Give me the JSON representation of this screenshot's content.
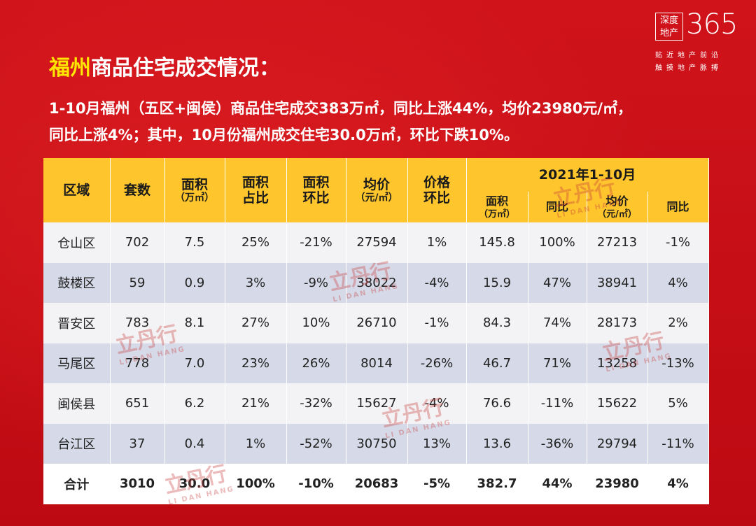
{
  "logo": {
    "box_text": "深度地产",
    "number": "365",
    "line1": "贴近地产前沿",
    "line2": "触摸地产脉搏"
  },
  "title": {
    "highlight": "福州",
    "rest": "商品住宅成交情况："
  },
  "summary": {
    "line1": "1-10月福州（五区+闽侯）商品住宅成交383万㎡，同比上涨44%，均价23980元/㎡，",
    "line2": "同比上涨4%；其中，10月份福州成交住宅30.0万㎡，环比下跌10%。"
  },
  "table": {
    "headers": {
      "region": "区域",
      "units": "套数",
      "area": "面积",
      "area_unit": "（万㎡）",
      "area_share_1": "面积",
      "area_share_2": "占比",
      "area_mom_1": "面积",
      "area_mom_2": "环比",
      "avg_price": "均价",
      "avg_price_unit": "（元/㎡）",
      "price_mom_1": "价格",
      "price_mom_2": "环比",
      "group": "2021年1-10月",
      "ytd_area": "面积",
      "ytd_area_unit": "（万㎡）",
      "ytd_area_yoy": "同比",
      "ytd_price": "均价",
      "ytd_price_unit": "（元/㎡）",
      "ytd_price_yoy": "同比"
    },
    "rows": [
      [
        "仓山区",
        "702",
        "7.5",
        "25%",
        "-21%",
        "27594",
        "1%",
        "145.8",
        "100%",
        "27213",
        "-1%"
      ],
      [
        "鼓楼区",
        "59",
        "0.9",
        "3%",
        "-9%",
        "38022",
        "-4%",
        "15.9",
        "47%",
        "38941",
        "4%"
      ],
      [
        "晋安区",
        "783",
        "8.1",
        "27%",
        "10%",
        "26710",
        "-1%",
        "84.3",
        "74%",
        "28173",
        "2%"
      ],
      [
        "马尾区",
        "778",
        "7.0",
        "23%",
        "26%",
        "8014",
        "-26%",
        "46.7",
        "71%",
        "13258",
        "-13%"
      ],
      [
        "闽侯县",
        "651",
        "6.2",
        "21%",
        "-32%",
        "15627",
        "-4%",
        "76.6",
        "-11%",
        "15622",
        "5%"
      ],
      [
        "台江区",
        "37",
        "0.4",
        "1%",
        "-52%",
        "30750",
        "13%",
        "13.6",
        "-36%",
        "29794",
        "-11%"
      ],
      [
        "合计",
        "3010",
        "30.0",
        "100%",
        "-10%",
        "20683",
        "-5%",
        "382.7",
        "44%",
        "23980",
        "4%"
      ]
    ]
  },
  "watermark": {
    "text": "立丹行",
    "sub": "LI DAN HANG"
  }
}
